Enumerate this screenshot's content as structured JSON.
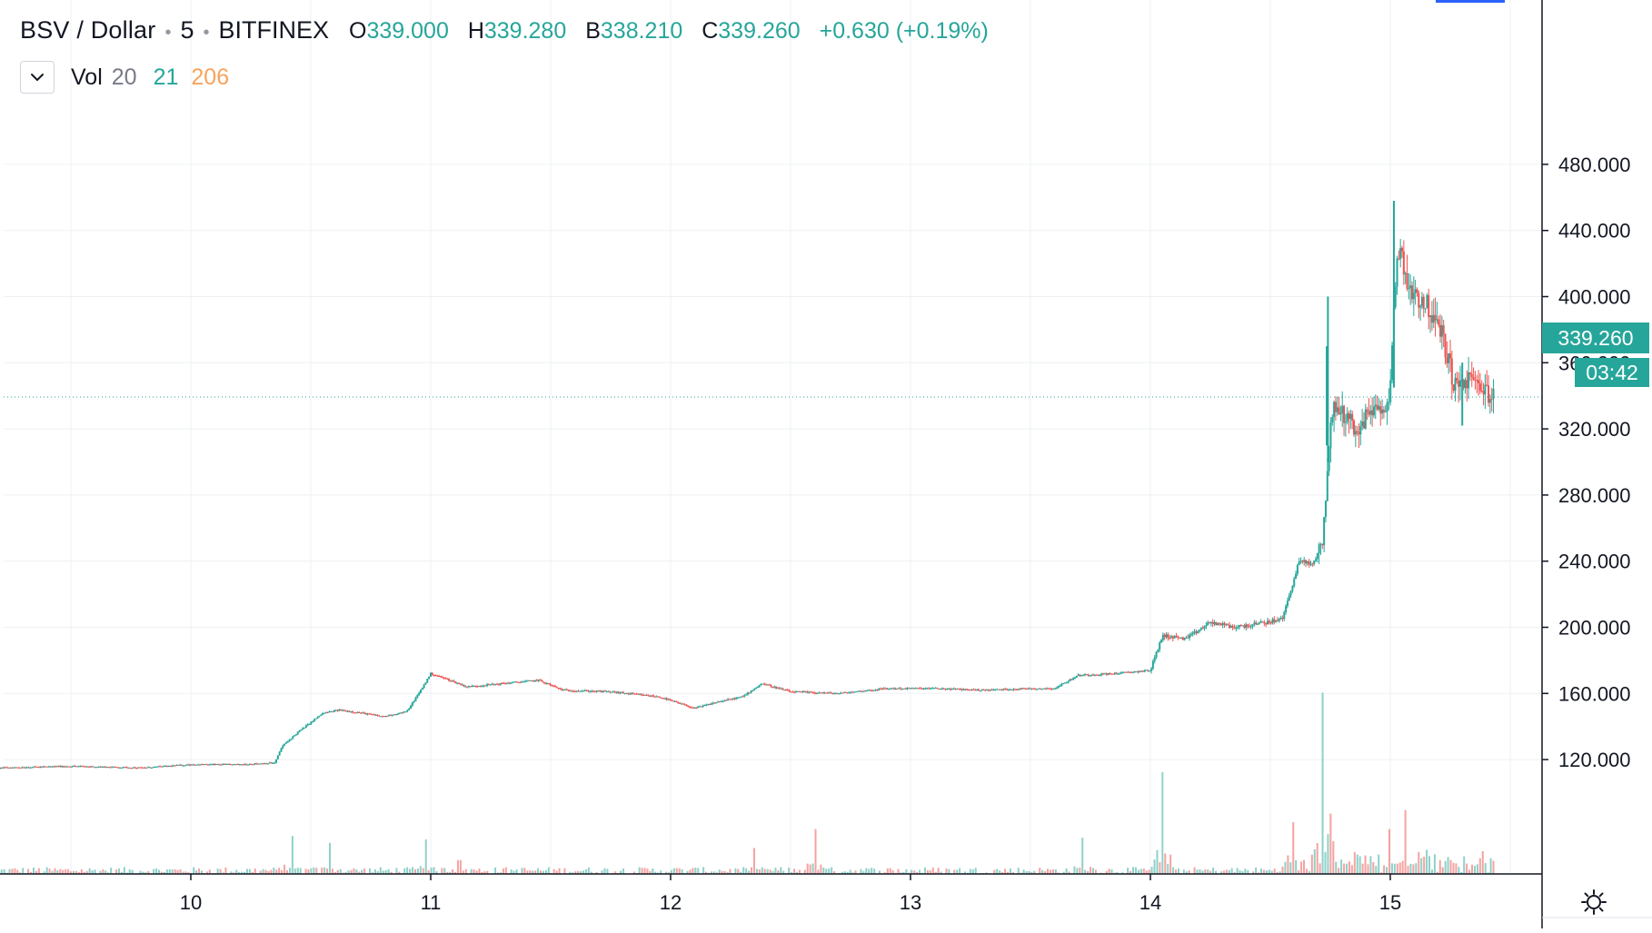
{
  "header": {
    "symbol": "BSV / Dollar",
    "interval": "5",
    "exchange": "BITFINEX",
    "open_key": "O",
    "open": "339.000",
    "high_key": "H",
    "high": "339.280",
    "low_key": "B",
    "low": "338.210",
    "close_key": "C",
    "close": "339.260",
    "change": "+0.630 (+0.19%)"
  },
  "volume_legend": {
    "label": "Vol",
    "period": "20",
    "value_a": "21",
    "value_b": "206"
  },
  "badges": {
    "last_price": "339.260",
    "countdown": "03:42"
  },
  "colors": {
    "up": "#26a69a",
    "down": "#ef5350",
    "up_volume": "#8fd1c9",
    "down_volume": "#f5a3a1",
    "grid": "#eef0f3",
    "price_line": "#26a69a"
  },
  "chart_data": {
    "type": "candlestick",
    "x_axis": "date",
    "x_ticks": [
      "10",
      "11",
      "12",
      "13",
      "14",
      "15"
    ],
    "y_ticks": [
      "120.000",
      "160.000",
      "200.000",
      "240.000",
      "280.000",
      "320.000",
      "360.000",
      "400.000",
      "440.000",
      "480.000"
    ],
    "ylim": [
      90,
      500
    ],
    "last_price": 339.26,
    "grid": true,
    "series": [
      {
        "name": "BSV / Dollar",
        "points": [
          [
            9.2,
            115
          ],
          [
            9.5,
            116
          ],
          [
            9.8,
            115
          ],
          [
            10.0,
            117
          ],
          [
            10.2,
            117
          ],
          [
            10.35,
            118
          ],
          [
            10.38,
            128
          ],
          [
            10.45,
            137
          ],
          [
            10.55,
            148
          ],
          [
            10.62,
            150
          ],
          [
            10.72,
            148
          ],
          [
            10.8,
            146
          ],
          [
            10.9,
            149
          ],
          [
            10.95,
            160
          ],
          [
            11.0,
            172
          ],
          [
            11.08,
            168
          ],
          [
            11.15,
            164
          ],
          [
            11.3,
            166
          ],
          [
            11.45,
            168
          ],
          [
            11.55,
            162
          ],
          [
            11.75,
            161
          ],
          [
            11.95,
            158
          ],
          [
            12.1,
            151
          ],
          [
            12.2,
            155
          ],
          [
            12.3,
            158
          ],
          [
            12.38,
            166
          ],
          [
            12.5,
            161
          ],
          [
            12.7,
            160
          ],
          [
            12.9,
            163
          ],
          [
            13.1,
            163
          ],
          [
            13.3,
            162
          ],
          [
            13.5,
            163
          ],
          [
            13.6,
            163
          ],
          [
            13.7,
            171
          ],
          [
            13.85,
            172
          ],
          [
            14.0,
            174
          ],
          [
            14.05,
            195
          ],
          [
            14.15,
            193
          ],
          [
            14.25,
            203
          ],
          [
            14.35,
            200
          ],
          [
            14.45,
            202
          ],
          [
            14.55,
            205
          ],
          [
            14.62,
            240
          ],
          [
            14.68,
            238
          ],
          [
            14.72,
            255
          ],
          [
            14.74,
            300
          ],
          [
            14.76,
            333
          ],
          [
            14.8,
            330
          ],
          [
            14.87,
            318
          ],
          [
            14.92,
            334
          ],
          [
            14.97,
            328
          ],
          [
            15.0,
            345
          ],
          [
            15.03,
            432
          ],
          [
            15.08,
            405
          ],
          [
            15.15,
            395
          ],
          [
            15.22,
            375
          ],
          [
            15.27,
            345
          ],
          [
            15.33,
            350
          ],
          [
            15.4,
            343
          ],
          [
            15.43,
            339
          ]
        ]
      }
    ],
    "volume_series": {
      "name": "Vol",
      "spikes": [
        [
          10.42,
          22
        ],
        [
          10.58,
          18
        ],
        [
          10.98,
          20
        ],
        [
          11.12,
          8
        ],
        [
          12.35,
          15
        ],
        [
          12.6,
          26
        ],
        [
          13.72,
          21
        ],
        [
          14.05,
          59
        ],
        [
          14.6,
          30
        ],
        [
          14.72,
          105
        ],
        [
          14.75,
          35
        ],
        [
          15.0,
          26
        ],
        [
          15.06,
          37
        ],
        [
          15.15,
          14
        ]
      ]
    }
  }
}
